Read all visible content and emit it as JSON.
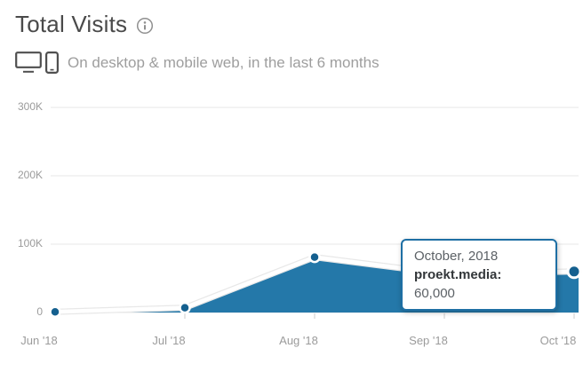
{
  "header": {
    "title": "Total Visits"
  },
  "subtitle": {
    "text": "On desktop & mobile web, in the last 6 months"
  },
  "tooltip": {
    "title": "October, 2018",
    "series_label": "proekt.media:",
    "value": "60,000"
  },
  "colors": {
    "area": "#2478a9",
    "dot": "#15608f",
    "line": "#ffffff",
    "line_halo": "#e8e8e8",
    "grid": "#e7e7e7",
    "tick": "#cccccc",
    "tooltip_border": "#1e6fa4",
    "axis_text": "#9b9b9b"
  },
  "chart_data": {
    "type": "area",
    "title": "Total Visits",
    "x": [
      "Jun '18",
      "Jul '18",
      "Aug '18",
      "Sep '18",
      "Oct '18"
    ],
    "series": [
      {
        "name": "proekt.media",
        "values": [
          1000,
          7000,
          81000,
          57000,
          60000
        ]
      }
    ],
    "y_ticks": [
      {
        "label": "0",
        "value": 0
      },
      {
        "label": "100K",
        "value": 100000
      },
      {
        "label": "200K",
        "value": 200000
      },
      {
        "label": "300K",
        "value": 300000
      }
    ],
    "ylim": [
      0,
      300000
    ],
    "xlabel": "",
    "ylabel": "",
    "grid": "horizontal",
    "legend": "none",
    "highlight": {
      "x_index": 4,
      "date_label": "October, 2018",
      "value": 60000
    }
  }
}
